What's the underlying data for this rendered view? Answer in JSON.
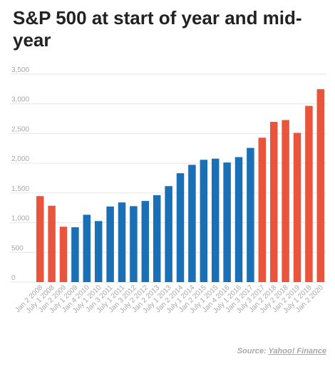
{
  "chart_data": {
    "type": "bar",
    "title": "S&P 500 at start of year and mid-year",
    "xlabel": "",
    "ylabel": "",
    "ylim": [
      0,
      3500
    ],
    "yticks": [
      "0",
      "500",
      "1,000",
      "1,500",
      "2,000",
      "2,500",
      "3,000",
      "3,500"
    ],
    "ytick_values": [
      0,
      500,
      1000,
      1500,
      2000,
      2500,
      3000,
      3500
    ],
    "grid": true,
    "categories": [
      "Jan 2 2008",
      "July 1 2008",
      "Jan 2 2009",
      "July 1 2009",
      "Jan 4 2010",
      "July 1 2010",
      "Jan 3 2011",
      "July 1 2011",
      "Jan 3 2012",
      "July 2 2012",
      "Jan 2 2013",
      "July 1 2013",
      "Jan 2 2014",
      "July 1 2014",
      "Jan 2 2015",
      "July 1 2015",
      "Jan 4 2016",
      "July 1 2016",
      "Jan 3 2017",
      "July 3 2017",
      "Jan 2 2018",
      "July 2 2018",
      "Jan 2 2019",
      "July 1 2019",
      "Jan 2 2020"
    ],
    "values": [
      1447,
      1285,
      932,
      923,
      1133,
      1027,
      1272,
      1340,
      1278,
      1365,
      1462,
      1615,
      1832,
      1973,
      2058,
      2077,
      2012,
      2103,
      2258,
      2430,
      2696,
      2727,
      2511,
      2965,
      3246
    ],
    "colors": [
      "#e8553c",
      "#e8553c",
      "#e8553c",
      "#1a6fb5",
      "#1a6fb5",
      "#1a6fb5",
      "#1a6fb5",
      "#1a6fb5",
      "#1a6fb5",
      "#1a6fb5",
      "#1a6fb5",
      "#1a6fb5",
      "#1a6fb5",
      "#1a6fb5",
      "#1a6fb5",
      "#1a6fb5",
      "#1a6fb5",
      "#1a6fb5",
      "#1a6fb5",
      "#e8553c",
      "#e8553c",
      "#e8553c",
      "#e8553c",
      "#e8553c",
      "#e8553c"
    ]
  },
  "source": {
    "prefix": "Source: ",
    "link": "Yahoo! Finance"
  }
}
